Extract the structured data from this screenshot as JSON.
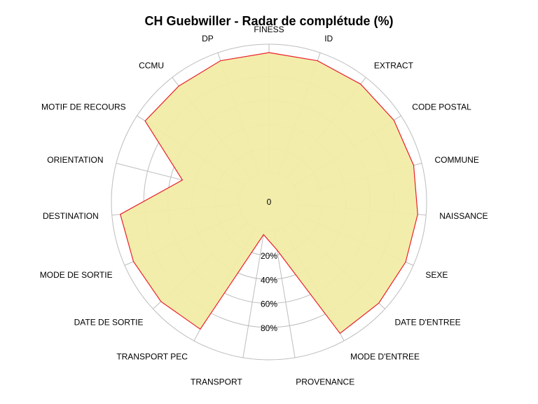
{
  "chart_data": {
    "type": "radar",
    "title": "CH Guebwiller - Radar de complétude (%)",
    "categories": [
      "FINESS",
      "ID",
      "EXTRACT",
      "CODE POSTAL",
      "COMMUNE",
      "NAISSANCE",
      "SEXE",
      "DATE D'ENTREE",
      "MODE D'ENTREE",
      "PROVENANCE",
      "TRANSPORT",
      "TRANSPORT PEC",
      "DATE DE SORTIE",
      "MODE DE SORTIE",
      "DESTINATION",
      "ORIENTATION",
      "MOTIF DE RECOURS",
      "CCMU",
      "DP"
    ],
    "series": [
      {
        "values": [
          100,
          100,
          100,
          100,
          100,
          100,
          100,
          100,
          100,
          16,
          3,
          96,
          98,
          99,
          100,
          50,
          99,
          98,
          100
        ]
      }
    ],
    "tick_labels": [
      "0",
      "20%",
      "40%",
      "60%",
      "80%"
    ],
    "rlim": [
      0,
      100
    ],
    "grid": true,
    "fill_color": "#f2eca8",
    "line_color": "#e8202a",
    "grid_color": "#bdbdbd"
  }
}
